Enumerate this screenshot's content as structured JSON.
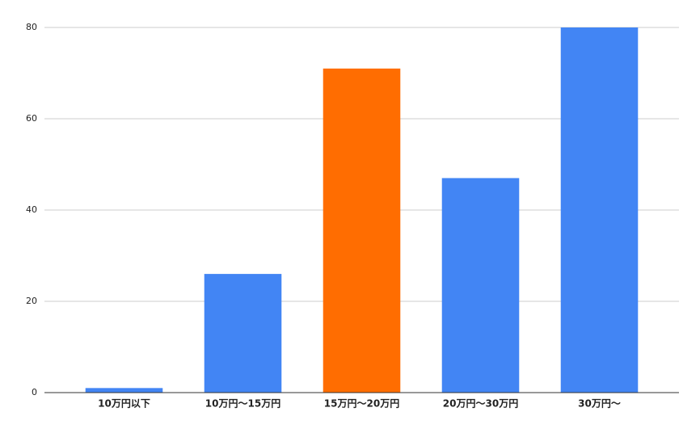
{
  "chart_data": {
    "type": "bar",
    "categories": [
      "10万円以下",
      "10万円〜15万円",
      "15万円〜20万円",
      "20万円〜30万円",
      "30万円〜"
    ],
    "values": [
      1,
      26,
      71,
      47,
      80
    ],
    "colors": [
      "#4285f4",
      "#4285f4",
      "#ff6d01",
      "#4285f4",
      "#4285f4"
    ],
    "ylim": [
      0,
      80
    ],
    "yticks": [
      0,
      20,
      40,
      60,
      80
    ],
    "grid": true
  }
}
